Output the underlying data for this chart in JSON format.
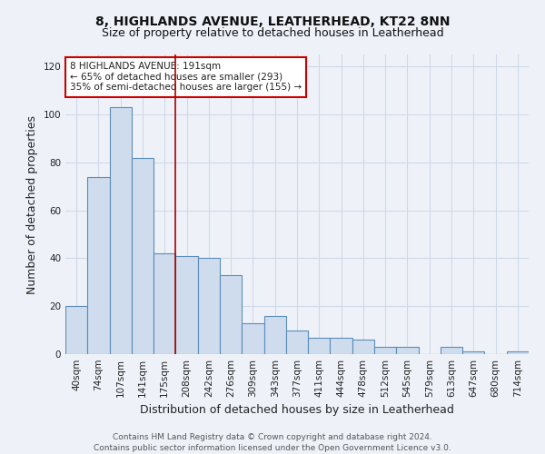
{
  "title": "8, HIGHLANDS AVENUE, LEATHERHEAD, KT22 8NN",
  "subtitle": "Size of property relative to detached houses in Leatherhead",
  "xlabel": "Distribution of detached houses by size in Leatherhead",
  "ylabel": "Number of detached properties",
  "categories": [
    "40sqm",
    "74sqm",
    "107sqm",
    "141sqm",
    "175sqm",
    "208sqm",
    "242sqm",
    "276sqm",
    "309sqm",
    "343sqm",
    "377sqm",
    "411sqm",
    "444sqm",
    "478sqm",
    "512sqm",
    "545sqm",
    "579sqm",
    "613sqm",
    "647sqm",
    "680sqm",
    "714sqm"
  ],
  "values": [
    20,
    74,
    103,
    82,
    42,
    41,
    40,
    33,
    13,
    16,
    10,
    7,
    7,
    6,
    3,
    3,
    0,
    3,
    1,
    0,
    1
  ],
  "bar_color": "#cfdcee",
  "bar_edge_color": "#5b8db8",
  "vline_x": 4.5,
  "vline_color": "#aa0000",
  "annotation_text": "8 HIGHLANDS AVENUE: 191sqm\n← 65% of detached houses are smaller (293)\n35% of semi-detached houses are larger (155) →",
  "annotation_box_color": "white",
  "annotation_box_edge_color": "#cc0000",
  "ylim": [
    0,
    125
  ],
  "yticks": [
    0,
    20,
    40,
    60,
    80,
    100,
    120
  ],
  "footer_text": "Contains HM Land Registry data © Crown copyright and database right 2024.\nContains public sector information licensed under the Open Government Licence v3.0.",
  "background_color": "#eef2f8",
  "grid_color": "#d0d8e8",
  "title_fontsize": 10,
  "subtitle_fontsize": 9,
  "axis_label_fontsize": 9,
  "tick_fontsize": 7.5,
  "annotation_fontsize": 7.5,
  "footer_fontsize": 6.5
}
